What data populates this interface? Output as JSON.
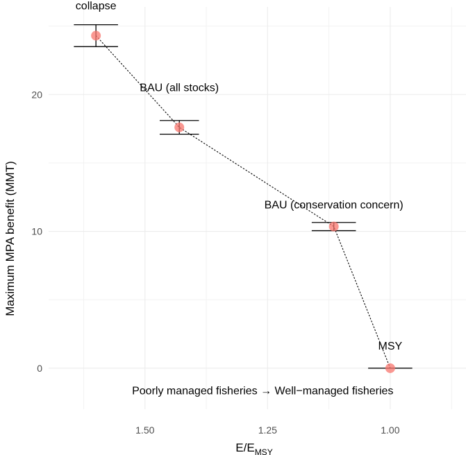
{
  "chart_data": {
    "type": "scatter",
    "title": "",
    "xlabel": "E/E",
    "xlabel_subscript": "MSY",
    "ylabel": "Maximum MPA benefit (MMT)",
    "x_reversed": true,
    "xlim": [
      1.6965,
      0.8455
    ],
    "ylim": [
      -3.0,
      26.4
    ],
    "x_ticks": [
      1.5,
      1.25,
      1.0
    ],
    "x_tick_labels": [
      "1.50",
      "1.25",
      "1.00"
    ],
    "y_ticks": [
      0,
      10,
      20
    ],
    "y_tick_labels": [
      "0",
      "10",
      "20"
    ],
    "grid": true,
    "legend": "none",
    "point_color": "#f8766d",
    "line_style": "dotted",
    "points": [
      {
        "name": "collapse",
        "x": 1.6,
        "y": 24.3,
        "ymin": 23.5,
        "ymax": 25.1,
        "err_halfwidth": 0.045
      },
      {
        "name": "BAU (all stocks)",
        "x": 1.43,
        "y": 17.6,
        "ymin": 17.1,
        "ymax": 18.1,
        "err_halfwidth": 0.04
      },
      {
        "name": "BAU (conservation concern)",
        "x": 1.115,
        "y": 10.35,
        "ymin": 10.05,
        "ymax": 10.65,
        "err_halfwidth": 0.045
      },
      {
        "name": "MSY",
        "x": 1.0,
        "y": 0.0,
        "ymin": 0.0,
        "ymax": 0.0,
        "err_halfwidth": 0.045
      }
    ],
    "annotation": {
      "text": "Poorly managed fisheries → Well−managed fisheries",
      "x": 1.26,
      "y": -1.5
    }
  }
}
